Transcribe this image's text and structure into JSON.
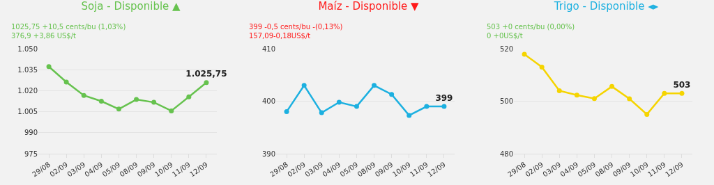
{
  "chart_data": [
    {
      "type": "line",
      "title": "Soja - Disponible ▲",
      "subtitle": "1025,75 +10,5 cents/bu (1,03%)\n376,9 +3,86 US$/t",
      "categories": [
        "29/08",
        "02/09",
        "03/09",
        "04/09",
        "05/09",
        "08/09",
        "09/09",
        "10/09",
        "11/09",
        "12/09"
      ],
      "series": [
        {
          "color": "#66c24e",
          "values": [
            1037.2,
            1026.2,
            1016.6,
            1012.5,
            1006.9,
            1013.7,
            1011.7,
            1005.6,
            1015.6,
            1025.75
          ],
          "value_labels": [
            null,
            null,
            null,
            null,
            null,
            null,
            null,
            null,
            null,
            "1.025,75"
          ]
        }
      ],
      "ylim": [
        975,
        1050
      ],
      "yticks": [
        {
          "value": 975,
          "label": "975"
        },
        {
          "value": 990,
          "label": "990"
        },
        {
          "value": 1005,
          "label": "1.005"
        },
        {
          "value": 1020,
          "label": "1.020"
        },
        {
          "value": 1035,
          "label": "1.035"
        },
        {
          "value": 1050,
          "label": "1.050"
        }
      ],
      "grid": "y",
      "marker": "circle",
      "legend": false
    },
    {
      "type": "line",
      "title": "Maíz - Disponible ▼",
      "subtitle": "399 -0,5 cents/bu -(0,13%)\n157,09-0,18US$/t",
      "categories": [
        "29/08",
        "02/09",
        "03/09",
        "04/09",
        "05/09",
        "08/09",
        "09/09",
        "10/09",
        "11/09",
        "12/09"
      ],
      "series": [
        {
          "color": "#1cb0e0",
          "values": [
            398.0,
            403.0,
            397.8,
            399.8,
            399.0,
            403.0,
            401.3,
            397.3,
            399.0,
            399
          ],
          "value_labels": [
            null,
            null,
            null,
            null,
            null,
            null,
            null,
            null,
            null,
            "399"
          ]
        }
      ],
      "ylim": [
        390,
        410
      ],
      "yticks": [
        390,
        400,
        410
      ],
      "grid": "y",
      "marker": "circle",
      "legend": false
    },
    {
      "type": "line",
      "title": "Trigo - Disponible ◂▸",
      "subtitle": "503 +0 cents/bu (0,00%)\n0 +0US$/t",
      "categories": [
        "29/08",
        "02/09",
        "03/09",
        "04/09",
        "05/09",
        "08/09",
        "09/09",
        "10/09",
        "11/09",
        "12/09"
      ],
      "series": [
        {
          "color": "#f5d400",
          "values": [
            517.9,
            513,
            504,
            502.3,
            501,
            505.6,
            500.9,
            495,
            503,
            503
          ],
          "value_labels": [
            null,
            null,
            null,
            null,
            null,
            null,
            null,
            null,
            null,
            "503"
          ]
        }
      ],
      "ylim": [
        480,
        520
      ],
      "yticks": [
        480,
        500,
        520
      ],
      "grid": "y",
      "marker": "circle",
      "legend": false
    }
  ]
}
